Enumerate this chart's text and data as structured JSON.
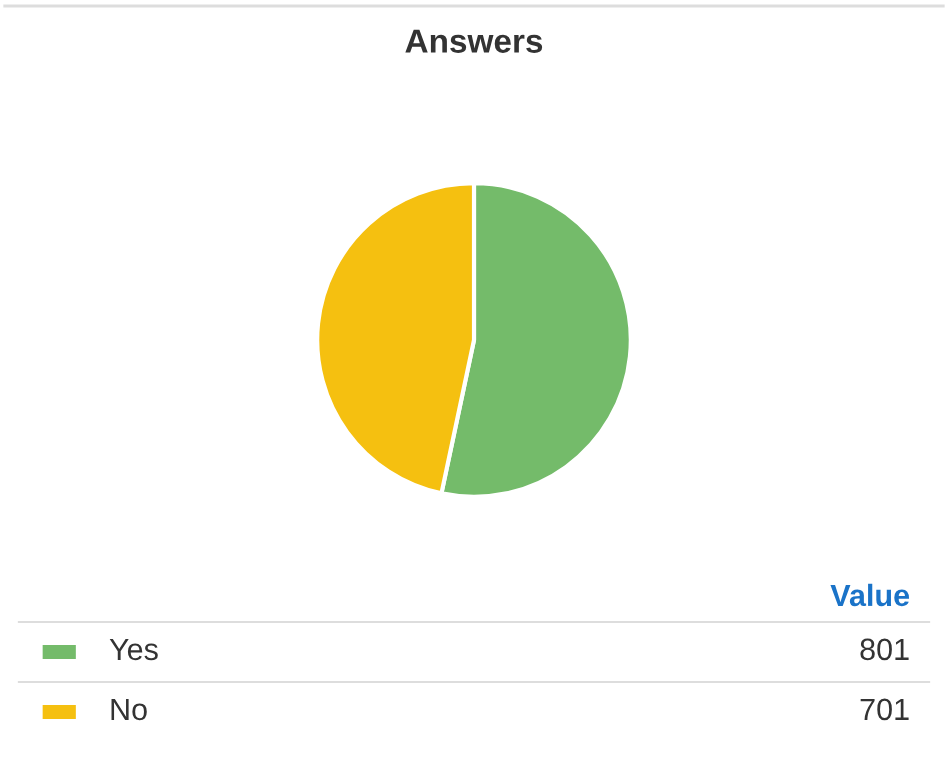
{
  "chart_data": {
    "type": "pie",
    "title": "Answers",
    "categories": [
      "Yes",
      "No"
    ],
    "values": [
      801,
      701
    ],
    "colors": [
      "#74bb6a",
      "#f5c010"
    ],
    "data_labels": true,
    "legend": "bottom",
    "annotations": [
      "Value"
    ]
  }
}
